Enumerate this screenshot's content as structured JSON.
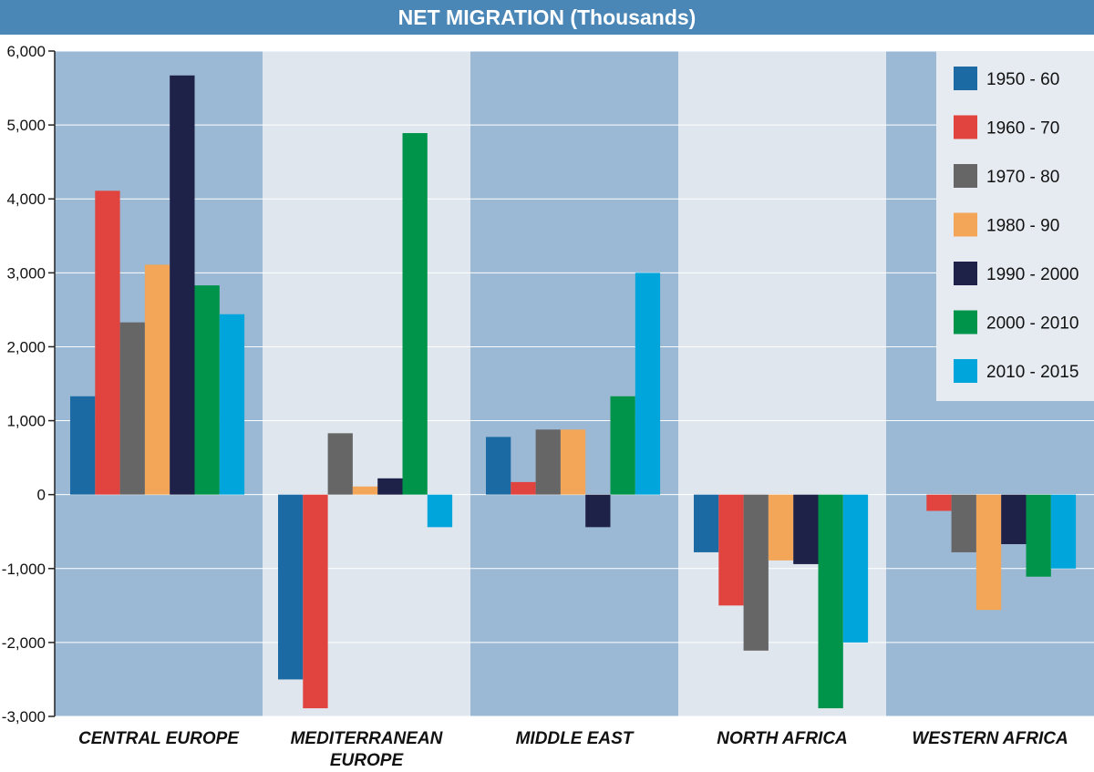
{
  "chart_data": {
    "type": "bar",
    "title": "NET MIGRATION (Thousands)",
    "categories": [
      [
        "CENTRAL EUROPE"
      ],
      [
        "MEDITERRANEAN",
        "EUROPE"
      ],
      [
        "MIDDLE EAST"
      ],
      [
        "NORTH AFRICA"
      ],
      [
        "WESTERN AFRICA"
      ]
    ],
    "ylim": [
      -3000,
      6000
    ],
    "yticks": [
      6000,
      5000,
      4000,
      3000,
      2000,
      1000,
      0,
      -1000,
      -2000,
      -3000
    ],
    "ytick_labels": [
      "6,000",
      "5,000",
      "4,000",
      "3,000",
      "2,000",
      "1,000",
      "0",
      "-1,000",
      "-2,000",
      "-3,000"
    ],
    "grid": true,
    "legend_position": "top-right",
    "band_colors": [
      "#9bb9d4",
      "#dfe6ee"
    ],
    "series": [
      {
        "name": "1950 - 60",
        "color": "#1c6aa3",
        "values": [
          1330,
          -2500,
          780,
          -780,
          0
        ]
      },
      {
        "name": "1960 - 70",
        "color": "#e1443f",
        "values": [
          4110,
          -2890,
          170,
          -1500,
          -220
        ]
      },
      {
        "name": "1970 - 80",
        "color": "#666666",
        "values": [
          2330,
          830,
          880,
          -2110,
          -780
        ]
      },
      {
        "name": "1980 - 90",
        "color": "#f4a658",
        "values": [
          3110,
          110,
          880,
          -890,
          -1560
        ]
      },
      {
        "name": "1990 - 2000",
        "color": "#1e2148",
        "values": [
          5670,
          220,
          -440,
          -940,
          -670
        ]
      },
      {
        "name": "2000 - 2010",
        "color": "#00944a",
        "values": [
          2830,
          4890,
          1330,
          -2890,
          -1110
        ]
      },
      {
        "name": "2010 - 2015",
        "color": "#00a5dc",
        "values": [
          2440,
          -440,
          3000,
          -2000,
          -1000
        ]
      }
    ]
  }
}
